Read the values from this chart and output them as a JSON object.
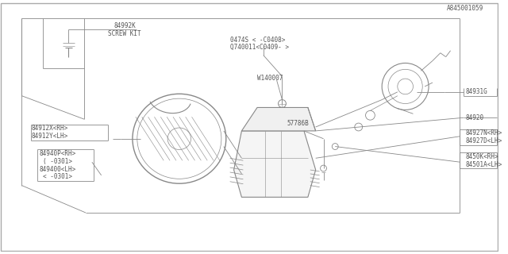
{
  "background_color": "#ffffff",
  "line_color": "#888888",
  "text_color": "#555555",
  "fig_width": 6.4,
  "fig_height": 3.2,
  "dpi": 100,
  "footer_text": "A845001059",
  "labels": {
    "part1a": "0474S < -C0408>",
    "part1b": "Q740011<C0409- >",
    "part2": "W140007",
    "part3": "84931G",
    "part4": "84920",
    "part5a": "84927N<RH>",
    "part5b": "84927D<LH>",
    "part6a": "84912X<RH>",
    "part6b": "84912Y<LH>",
    "part7a": "84940P<RH>",
    "part7b": "( -0301>",
    "part7c": "849400<LH>",
    "part7d": "< -0301>",
    "part8": "84992K",
    "part8b": "SCREW KIT",
    "part9": "57786B",
    "part10a": "8450K<RH>",
    "part10b": "84501A<LH>"
  }
}
